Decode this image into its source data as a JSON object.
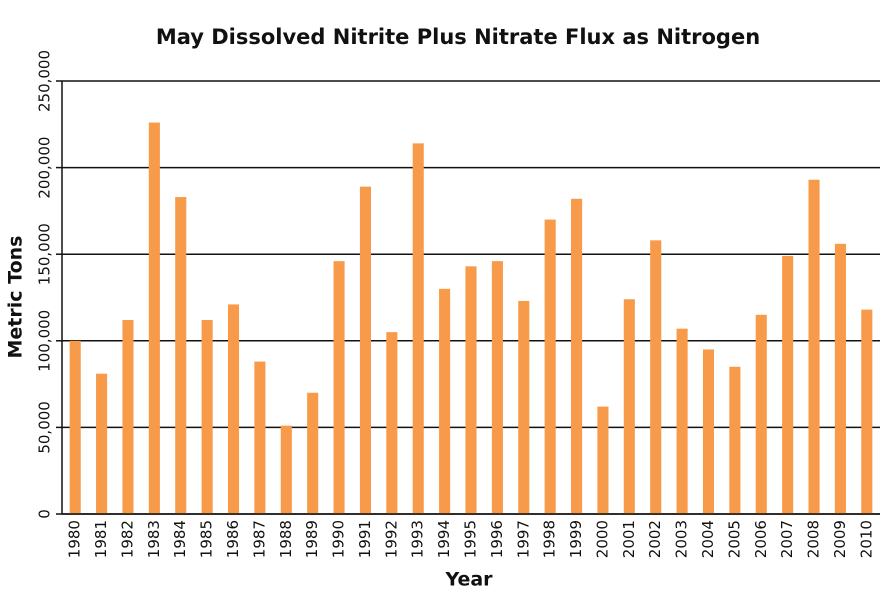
{
  "chart_data": {
    "type": "bar",
    "title": "May Dissolved Nitrite Plus Nitrate Flux as Nitrogen",
    "x_label": "Year",
    "y_label": "Metric Tons",
    "categories": [
      "1980",
      "1981",
      "1982",
      "1983",
      "1984",
      "1985",
      "1986",
      "1987",
      "1988",
      "1989",
      "1990",
      "1991",
      "1992",
      "1993",
      "1994",
      "1995",
      "1996",
      "1997",
      "1998",
      "1999",
      "2000",
      "2001",
      "2002",
      "2003",
      "2004",
      "2005",
      "2006",
      "2007",
      "2008",
      "2009",
      "2010"
    ],
    "values": [
      100000,
      81000,
      112000,
      226000,
      183000,
      112000,
      121000,
      88000,
      51000,
      70000,
      146000,
      189000,
      105000,
      214000,
      130000,
      143000,
      146000,
      123000,
      170000,
      182000,
      62000,
      124000,
      158000,
      107000,
      95000,
      85000,
      115000,
      149000,
      193000,
      156000,
      118000
    ],
    "color": "#f79a4a",
    "ylim": [
      0,
      250000
    ],
    "yticks": [
      0,
      {
        "value": 50000,
        "label": "50,000"
      },
      {
        "value": 100000,
        "label": "100,000"
      },
      {
        "value": 150000,
        "label": "150,000"
      },
      {
        "value": 200000,
        "label": "200,000"
      },
      {
        "value": 250000,
        "label": "250,000"
      }
    ],
    "grid": true
  }
}
